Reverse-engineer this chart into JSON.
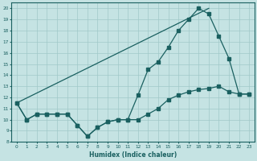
{
  "xlabel": "Humidex (Indice chaleur)",
  "bg_color": "#c5e3e3",
  "line_color": "#1a6060",
  "grid_color": "#a0c8c8",
  "xlim": [
    -0.5,
    23.5
  ],
  "ylim": [
    8.0,
    20.5
  ],
  "yticks": [
    8,
    9,
    10,
    11,
    12,
    13,
    14,
    15,
    16,
    17,
    18,
    19,
    20
  ],
  "xticks": [
    0,
    1,
    2,
    3,
    4,
    5,
    6,
    7,
    8,
    9,
    10,
    11,
    12,
    13,
    14,
    15,
    16,
    17,
    18,
    19,
    20,
    21,
    22,
    23
  ],
  "line1_x": [
    0,
    1,
    2,
    3,
    4,
    5,
    6,
    7,
    8,
    9,
    10,
    11,
    12,
    13,
    14,
    15,
    16,
    17,
    18,
    19,
    20,
    21,
    22,
    23
  ],
  "line1_y": [
    11.5,
    10.0,
    10.5,
    10.5,
    10.5,
    10.5,
    9.5,
    8.5,
    9.3,
    9.8,
    10.0,
    10.0,
    10.0,
    10.5,
    11.0,
    11.8,
    12.2,
    12.5,
    12.7,
    12.8,
    13.0,
    12.5,
    12.3,
    12.3
  ],
  "line2_x": [
    0,
    1,
    2,
    3,
    4,
    5,
    6,
    7,
    8,
    9,
    10,
    11,
    12,
    13,
    14,
    15,
    16,
    17,
    18,
    19,
    20,
    21,
    22,
    23
  ],
  "line2_y": [
    11.5,
    10.0,
    10.5,
    10.5,
    10.5,
    10.5,
    9.5,
    8.5,
    9.3,
    9.8,
    10.0,
    10.0,
    12.2,
    14.5,
    15.2,
    16.5,
    18.0,
    19.0,
    20.0,
    19.5,
    17.5,
    15.5,
    12.3,
    12.3
  ],
  "line3_x": [
    0,
    19
  ],
  "line3_y": [
    11.5,
    20.0
  ]
}
